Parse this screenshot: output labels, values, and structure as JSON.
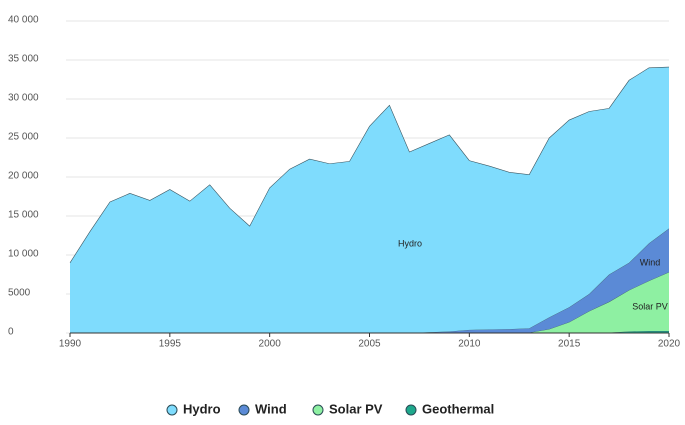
{
  "chart_data": {
    "type": "stacked-area",
    "x": [
      1990,
      1991,
      1992,
      1993,
      1994,
      1995,
      1996,
      1997,
      1998,
      1999,
      2000,
      2001,
      2002,
      2003,
      2004,
      2005,
      2006,
      2007,
      2008,
      2009,
      2010,
      2011,
      2012,
      2013,
      2014,
      2015,
      2016,
      2017,
      2018,
      2019,
      2020
    ],
    "series": [
      {
        "name": "Hydro",
        "color": "#7fdcfd",
        "values": [
          9000,
          13000,
          16800,
          17900,
          17000,
          18400,
          16900,
          19000,
          16000,
          13700,
          18600,
          21000,
          22300,
          21700,
          22000,
          26500,
          29200,
          23200,
          24200,
          25200,
          21700,
          20950,
          20100,
          19700,
          23000,
          24000,
          23400,
          21300,
          23400,
          22500,
          20700
        ]
      },
      {
        "name": "Wind",
        "color": "#5b8ad6",
        "values": [
          0,
          0,
          0,
          0,
          0,
          0,
          0,
          0,
          0,
          0,
          0,
          0,
          0,
          0,
          0,
          0,
          0,
          0,
          100,
          200,
          400,
          450,
          500,
          550,
          1500,
          1900,
          2200,
          3500,
          3500,
          4800,
          5600
        ]
      },
      {
        "name": "Solar PV",
        "color": "#8ef0a2",
        "values": [
          0,
          0,
          0,
          0,
          0,
          0,
          0,
          0,
          0,
          0,
          0,
          0,
          0,
          0,
          0,
          0,
          0,
          0,
          0,
          0,
          0,
          0,
          0,
          50,
          500,
          1400,
          2800,
          3950,
          5300,
          6450,
          7550
        ]
      },
      {
        "name": "Geothermal",
        "color": "#1ea88c",
        "values": [
          0,
          0,
          0,
          0,
          0,
          0,
          0,
          0,
          0,
          0,
          0,
          0,
          0,
          0,
          0,
          0,
          0,
          0,
          0,
          0,
          0,
          0,
          0,
          0,
          0,
          0,
          0,
          50,
          200,
          250,
          250
        ]
      }
    ],
    "xlim": [
      1990,
      2020
    ],
    "xticks": [
      1990,
      1995,
      2000,
      2005,
      2010,
      2015,
      2020
    ],
    "ylim": [
      0,
      40000
    ],
    "yticks": [
      0,
      5000,
      {
        "value": 10000,
        "label": "10 000"
      },
      {
        "value": 15000,
        "label": "15 000"
      },
      {
        "value": 20000,
        "label": "20 000"
      },
      {
        "value": 25000,
        "label": "25 000"
      },
      {
        "value": 30000,
        "label": "30 000"
      },
      {
        "value": 35000,
        "label": "35 000"
      },
      {
        "value": 40000,
        "label": "40 000"
      }
    ],
    "grid": true
  }
}
